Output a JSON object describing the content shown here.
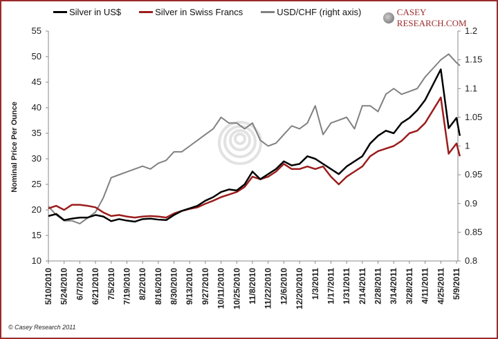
{
  "chart_data": {
    "type": "line",
    "title": "",
    "ylabel": "Nominal Price Per Ounce",
    "y2label": "",
    "ylim": [
      10,
      55
    ],
    "y2lim": [
      0.8,
      1.2
    ],
    "yticks": [
      "55",
      "50",
      "45",
      "40",
      "35",
      "30",
      "25",
      "20",
      "15",
      "10"
    ],
    "y2ticks": [
      "1.2",
      "1.15",
      "1.1",
      "1.05",
      "1",
      "0.95",
      "0.9",
      "0.85",
      "0.8"
    ],
    "xticks": [
      "5/10/2010",
      "5/24/2010",
      "6/7/2010",
      "6/21/2010",
      "7/5/2010",
      "7/19/2010",
      "8/2/2010",
      "8/16/2010",
      "8/30/2010",
      "9/13/2010",
      "9/27/2010",
      "10/11/2010",
      "10/25/2010",
      "11/8/2010",
      "11/22/2010",
      "12/6/2010",
      "12/20/2010",
      "1/3/2011",
      "1/17/2011",
      "1/31/2011",
      "2/14/2011",
      "2/28/2011",
      "3/14/2011",
      "3/28/2011",
      "4/11/2011",
      "4/25/2011",
      "5/9/2011"
    ],
    "grid": false,
    "legend_position": "top",
    "x": [
      "2010-05-10",
      "2010-05-17",
      "2010-05-24",
      "2010-05-31",
      "2010-06-07",
      "2010-06-14",
      "2010-06-21",
      "2010-06-28",
      "2010-07-05",
      "2010-07-12",
      "2010-07-19",
      "2010-07-26",
      "2010-08-02",
      "2010-08-09",
      "2010-08-16",
      "2010-08-23",
      "2010-08-30",
      "2010-09-06",
      "2010-09-13",
      "2010-09-20",
      "2010-09-27",
      "2010-10-04",
      "2010-10-11",
      "2010-10-18",
      "2010-10-25",
      "2010-11-01",
      "2010-11-08",
      "2010-11-15",
      "2010-11-22",
      "2010-11-29",
      "2010-12-06",
      "2010-12-13",
      "2010-12-20",
      "2010-12-27",
      "2011-01-03",
      "2011-01-10",
      "2011-01-17",
      "2011-01-24",
      "2011-01-31",
      "2011-02-07",
      "2011-02-14",
      "2011-02-21",
      "2011-02-28",
      "2011-03-07",
      "2011-03-14",
      "2011-03-21",
      "2011-03-28",
      "2011-04-04",
      "2011-04-11",
      "2011-04-18",
      "2011-04-25",
      "2011-05-02",
      "2011-05-09",
      "2011-05-12"
    ],
    "series": [
      {
        "name": "Silver in US$",
        "axis": "left",
        "color": "#000000",
        "values": [
          18.8,
          19.2,
          18.0,
          18.3,
          18.5,
          18.5,
          19.0,
          18.7,
          17.8,
          18.2,
          17.9,
          17.7,
          18.2,
          18.3,
          18.1,
          18.0,
          19.0,
          19.8,
          20.3,
          20.8,
          21.8,
          22.5,
          23.5,
          24.0,
          23.8,
          25.0,
          27.5,
          26.0,
          27.0,
          28.0,
          29.5,
          28.7,
          29.0,
          30.5,
          30.0,
          29.0,
          28.0,
          27.0,
          28.5,
          29.5,
          30.5,
          33.0,
          34.5,
          35.5,
          35.0,
          37.0,
          38.0,
          39.5,
          41.5,
          44.5,
          47.5,
          36.0,
          38.0,
          34.5
        ]
      },
      {
        "name": "Silver in Swiss Francs",
        "axis": "left",
        "color": "#9b1c1c",
        "values": [
          20.3,
          20.8,
          20.0,
          21.0,
          21.0,
          20.8,
          20.5,
          19.5,
          18.8,
          19.0,
          18.7,
          18.5,
          18.7,
          18.8,
          18.7,
          18.5,
          19.3,
          19.8,
          20.2,
          20.5,
          21.2,
          21.8,
          22.5,
          23.0,
          23.5,
          24.5,
          26.5,
          26.0,
          26.5,
          27.5,
          29.0,
          28.0,
          28.0,
          28.5,
          28.0,
          28.5,
          26.5,
          25.0,
          26.5,
          27.5,
          28.5,
          30.5,
          31.5,
          32.0,
          32.5,
          33.5,
          35.0,
          35.5,
          37.0,
          39.5,
          42.0,
          31.0,
          33.0,
          30.5
        ]
      },
      {
        "name": "USD/CHF (right axis)",
        "axis": "right",
        "color": "#808080",
        "values": [
          0.895,
          0.88,
          0.87,
          0.87,
          0.865,
          0.875,
          0.885,
          0.91,
          0.945,
          0.95,
          0.955,
          0.96,
          0.965,
          0.96,
          0.97,
          0.975,
          0.99,
          0.99,
          1.0,
          1.01,
          1.02,
          1.03,
          1.05,
          1.04,
          1.04,
          1.03,
          1.04,
          1.01,
          1.0,
          1.005,
          1.02,
          1.035,
          1.03,
          1.04,
          1.07,
          1.02,
          1.04,
          1.045,
          1.05,
          1.03,
          1.07,
          1.07,
          1.06,
          1.09,
          1.1,
          1.09,
          1.095,
          1.1,
          1.12,
          1.135,
          1.15,
          1.16,
          1.145,
          1.14
        ]
      }
    ]
  },
  "logo_text": "CASEY RESEARCH.COM",
  "copyright": "© Casey Research 2011"
}
